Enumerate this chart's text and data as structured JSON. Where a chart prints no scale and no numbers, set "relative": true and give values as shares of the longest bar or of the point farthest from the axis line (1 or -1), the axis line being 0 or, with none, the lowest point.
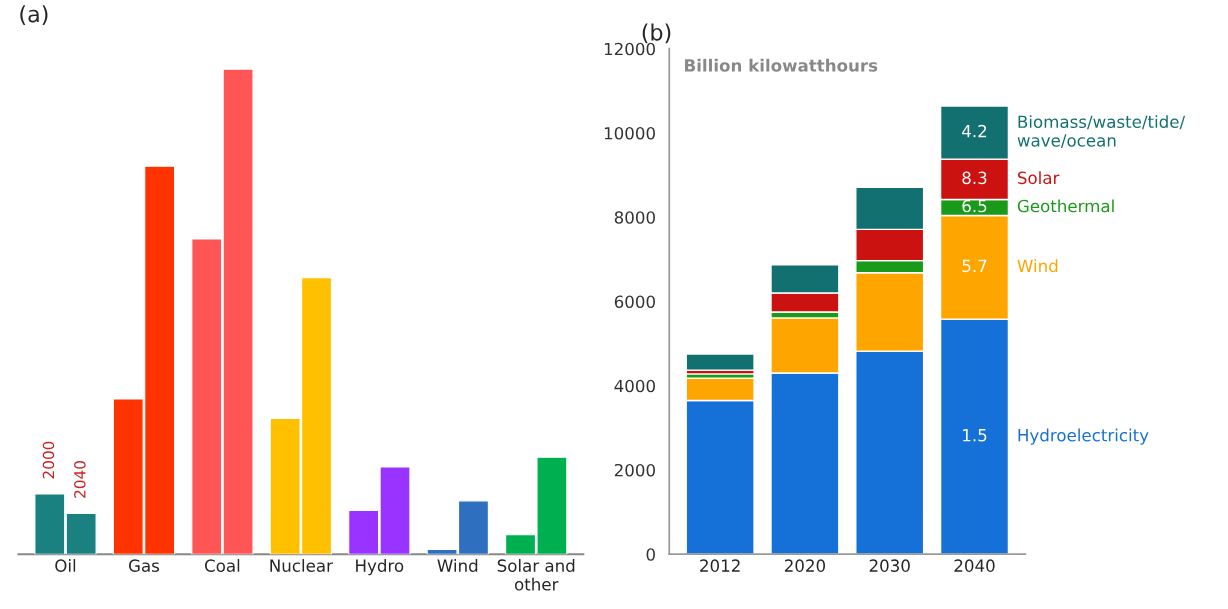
{
  "chart_data": [
    {
      "type": "bar",
      "title": "(a)",
      "relative": true,
      "categories": [
        "Oil",
        "Gas",
        "Coal",
        "Nuclear",
        "Hydro",
        "Wind",
        "Solar and\nother"
      ],
      "series": [
        {
          "name": "2000",
          "colors": [
            "#1a8080",
            "#ff3300",
            "#ff5555",
            "#ffc000",
            "#9933ff",
            "#2e6fc0",
            "#00b050"
          ],
          "values": [
            0.124,
            0.32,
            0.65,
            0.28,
            0.09,
            0.01,
            0.04
          ]
        },
        {
          "name": "2040",
          "colors": [
            "#1a8080",
            "#ff3300",
            "#ff5555",
            "#ffc000",
            "#9933ff",
            "#2e6fc0",
            "#00b050"
          ],
          "values": [
            0.084,
            0.8,
            1,
            0.57,
            0.18,
            0.11,
            0.2
          ]
        }
      ],
      "legend": false
    },
    {
      "type": "bar",
      "title": "(b)",
      "ylabel": "Billion kilowatthours",
      "stacked": true,
      "categories": [
        "2012",
        "2020",
        "2030",
        "2040"
      ],
      "ylim": [
        0,
        12000
      ],
      "yticks": [
        0,
        2000,
        4000,
        6000,
        8000,
        10000,
        12000
      ],
      "legend": false,
      "series": [
        {
          "name": "Hydroelectricity",
          "color": "#1570d8",
          "values": [
            3650,
            4300,
            4820,
            5580
          ]
        },
        {
          "name": "Wind",
          "color": "#ffa500",
          "values": [
            530,
            1310,
            1860,
            2460
          ]
        },
        {
          "name": "Geothermal",
          "color": "#1a9a1a",
          "values": [
            100,
            140,
            290,
            380
          ]
        },
        {
          "name": "Solar",
          "color": "#cc1111",
          "values": [
            90,
            450,
            740,
            960
          ]
        },
        {
          "name": "Biomass/waste/tide/\nwave/ocean",
          "color": "#137070",
          "values": [
            380,
            670,
            1000,
            1260
          ]
        }
      ],
      "annotations": [
        "1.5",
        "5.7",
        "6.5",
        "8.3",
        "4.2"
      ]
    }
  ]
}
